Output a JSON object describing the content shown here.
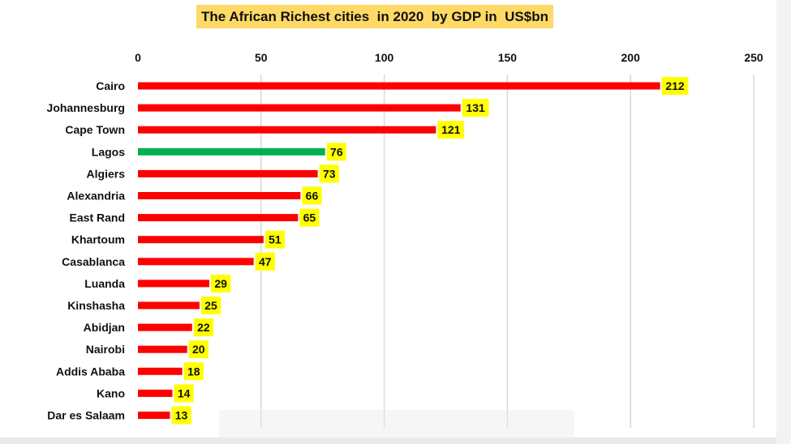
{
  "chart_data": {
    "type": "bar",
    "orientation": "horizontal",
    "title": "The African Richest cities  in 2020  by GDP in  US$bn",
    "categories": [
      "Cairo",
      "Johannesburg",
      "Cape Town",
      "Lagos",
      "Algiers",
      "Alexandria",
      "East Rand",
      "Khartoum",
      "Casablanca",
      "Luanda",
      "Kinshasha",
      "Abidjan",
      "Nairobi",
      "Addis Ababa",
      "Kano",
      "Dar es Salaam"
    ],
    "values": [
      212,
      131,
      121,
      76,
      73,
      66,
      65,
      51,
      47,
      29,
      25,
      22,
      20,
      18,
      14,
      13
    ],
    "bar_colors": [
      "#ff0000",
      "#ff0000",
      "#ff0000",
      "#00b050",
      "#ff0000",
      "#ff0000",
      "#ff0000",
      "#ff0000",
      "#ff0000",
      "#ff0000",
      "#ff0000",
      "#ff0000",
      "#ff0000",
      "#ff0000",
      "#ff0000",
      "#ff0000"
    ],
    "xlim": [
      0,
      250
    ],
    "x_ticks": [
      0,
      50,
      100,
      150,
      200,
      250
    ],
    "axis_position": "top",
    "grid": true,
    "legend": "none",
    "data_label_background": "#ffff00",
    "title_background": "#ffd966"
  }
}
